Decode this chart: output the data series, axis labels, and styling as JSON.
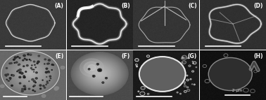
{
  "figsize": [
    3.78,
    1.43
  ],
  "dpi": 100,
  "nrows": 2,
  "ncols": 4,
  "labels": [
    "(A)",
    "(B)",
    "(C)",
    "(D)",
    "(E)",
    "(F)",
    "(G)",
    "(H)"
  ],
  "label_color": "white",
  "label_fontsize": 5.5,
  "bg_A": "#3a3a3a",
  "bg_B": "#252525",
  "bg_C": "#353535",
  "bg_D": "#303030",
  "bg_E": "#686868",
  "bg_F": "#4a4a4a",
  "bg_G": "#1a1a1a",
  "bg_H": "#111111",
  "scalebar_label_H": "2 μm"
}
